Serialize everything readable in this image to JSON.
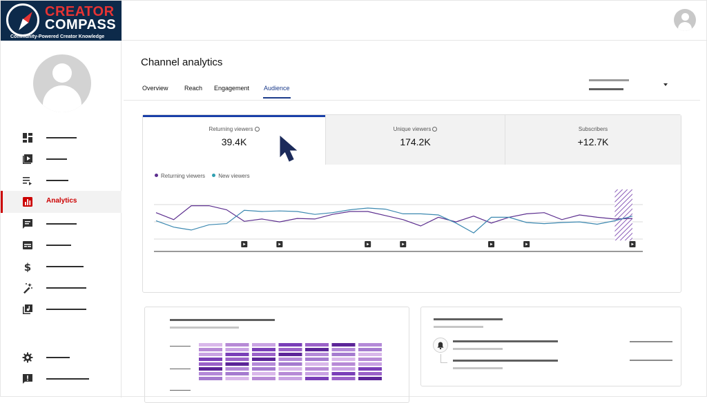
{
  "branding": {
    "line1": "CREATOR",
    "line2": "COMPASS",
    "tagline": "Community-Powered Creator Knowledge"
  },
  "page": {
    "title": "Channel analytics"
  },
  "tabs": [
    {
      "label": "Overview",
      "active": false
    },
    {
      "label": "Reach",
      "active": false
    },
    {
      "label": "Engagement",
      "active": false
    },
    {
      "label": "Audience",
      "active": true
    }
  ],
  "sidebar": {
    "items": [
      {
        "icon": "dashboard-icon"
      },
      {
        "icon": "content-icon"
      },
      {
        "icon": "playlists-icon"
      },
      {
        "icon": "analytics-icon",
        "label": "Analytics",
        "active": true
      },
      {
        "icon": "comments-icon"
      },
      {
        "icon": "subtitles-icon"
      },
      {
        "icon": "earn-dollar-icon"
      },
      {
        "icon": "customization-wand-icon"
      },
      {
        "icon": "audio-library-icon"
      },
      {
        "icon": "settings-gear-icon"
      },
      {
        "icon": "feedback-icon"
      }
    ]
  },
  "metrics": [
    {
      "label": "Returning viewers",
      "value": "39.4K",
      "has_info": true,
      "selected": true
    },
    {
      "label": "Unique viewers",
      "value": "174.2K",
      "has_info": true,
      "selected": false
    },
    {
      "label": "Subscribers",
      "value": "+12.7K",
      "has_info": false,
      "selected": false
    }
  ],
  "colors": {
    "accent": "#1a3fa8",
    "returning": "#5b2d8e",
    "new": "#2f7fa8",
    "active_nav": "#cc0000",
    "brand_navy": "#0d2a4a",
    "brand_red": "#e63333"
  },
  "chart_data": {
    "type": "line",
    "x": [
      0,
      1,
      2,
      3,
      4,
      5,
      6,
      7,
      8,
      9,
      10,
      11,
      12,
      13,
      14,
      15,
      16,
      17,
      18,
      19,
      20,
      21,
      22,
      23,
      24,
      25,
      26,
      27
    ],
    "series": [
      {
        "name": "Returning viewers",
        "values": [
          48,
          36,
          60,
          60,
          53,
          33,
          37,
          32,
          38,
          37,
          45,
          50,
          50,
          43,
          36,
          25,
          40,
          32,
          42,
          30,
          40,
          46,
          48,
          36,
          44,
          40,
          37,
          38
        ]
      },
      {
        "name": "New viewers",
        "values": [
          34,
          23,
          18,
          27,
          29,
          52,
          50,
          51,
          50,
          45,
          48,
          53,
          56,
          54,
          46,
          46,
          44,
          30,
          13,
          40,
          40,
          31,
          29,
          31,
          32,
          28,
          34,
          42
        ]
      }
    ],
    "video_markers_x": [
      5,
      7,
      12,
      14,
      19,
      21,
      27
    ],
    "forecast_from_x": 26,
    "ylim": [
      0,
      100
    ],
    "grid": true,
    "legend": "top-left"
  },
  "bottom_left_card": {
    "heatmap_columns": 7,
    "heatmap_rows": 8
  }
}
